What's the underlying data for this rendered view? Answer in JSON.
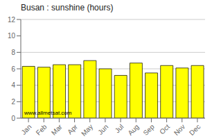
{
  "chart_data": {
    "type": "bar",
    "title": "Busan : sunshine (hours)",
    "categories": [
      "Jan",
      "Feb",
      "Mar",
      "Apr",
      "May",
      "Jun",
      "Jul",
      "Aug",
      "Sep",
      "Oct",
      "Nov",
      "Dec"
    ],
    "values": [
      6.3,
      6.2,
      6.5,
      6.5,
      7.0,
      6.0,
      5.2,
      6.7,
      5.5,
      6.4,
      6.1,
      6.4
    ],
    "color": "#ffff00",
    "ylim": [
      0,
      12
    ],
    "yticks": [
      0,
      2,
      4,
      6,
      8,
      10,
      12
    ],
    "grid": true,
    "annotation": "www.allmetsat.com"
  }
}
